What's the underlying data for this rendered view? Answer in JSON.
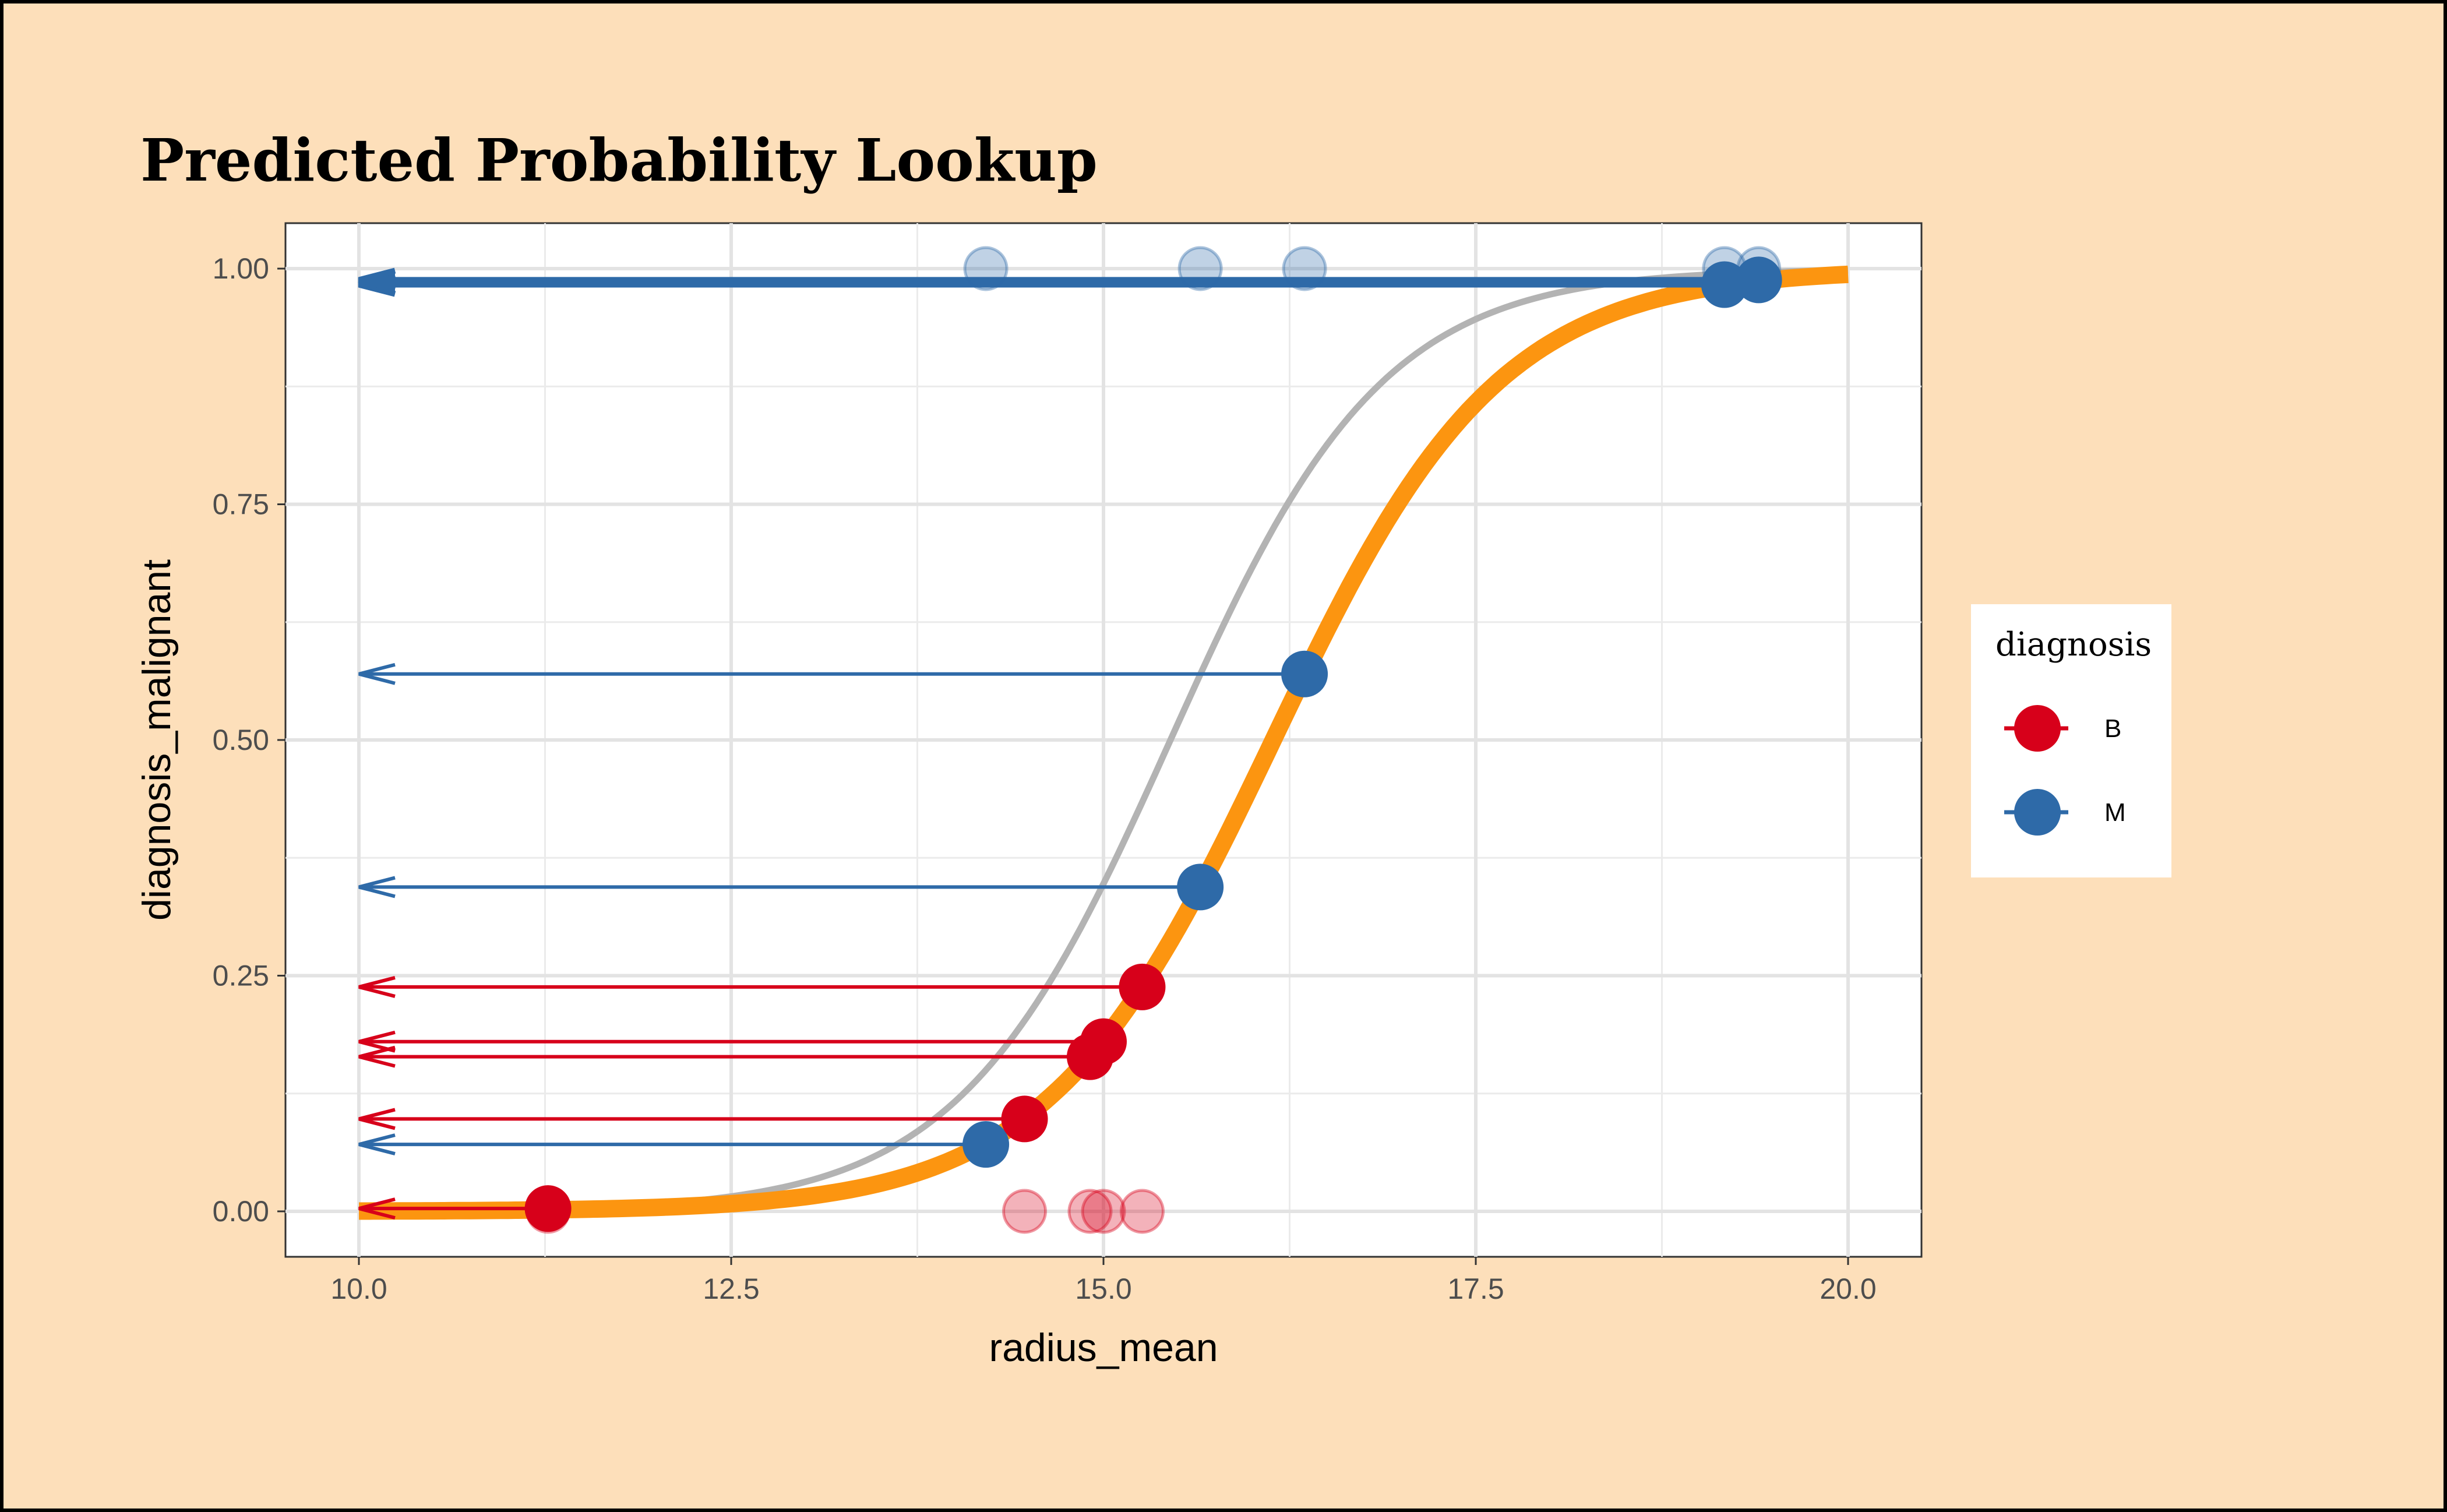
{
  "chart_data": {
    "type": "scatter",
    "title": "Predicted Probability Lookup",
    "xlabel": "radius_mean",
    "ylabel": "diagnosis_malignant",
    "xlim": [
      10,
      20
    ],
    "ylim": [
      0,
      1
    ],
    "xticks": [
      "10.0",
      "12.5",
      "15.0",
      "17.5",
      "20.0"
    ],
    "xtick_values": [
      10,
      12.5,
      15,
      17.5,
      20
    ],
    "yticks": [
      "0.00",
      "0.25",
      "0.50",
      "0.75",
      "1.00"
    ],
    "ytick_values": [
      0,
      0.25,
      0.5,
      0.75,
      1
    ],
    "grid": true,
    "legend": {
      "title": "diagnosis",
      "position": "right",
      "entries": [
        {
          "label": "B",
          "color": "#D7001A"
        },
        {
          "label": "M",
          "color": "#2E6AA8"
        }
      ]
    },
    "curves": [
      {
        "name": "fitted",
        "color": "#FC9510",
        "slope": 1.32,
        "midpoint": 16.14
      },
      {
        "name": "reference",
        "color": "#B3B3B3",
        "slope": 1.4,
        "midpoint": 15.45
      }
    ],
    "points": [
      {
        "x": 11.27,
        "p": 0.003,
        "observed": 0,
        "diagnosis": "B"
      },
      {
        "x": 14.21,
        "p": 0.071,
        "observed": 1,
        "diagnosis": "M"
      },
      {
        "x": 14.47,
        "p": 0.098,
        "observed": 0,
        "diagnosis": "B"
      },
      {
        "x": 14.91,
        "p": 0.164,
        "observed": 0,
        "diagnosis": "B"
      },
      {
        "x": 15.0,
        "p": 0.18,
        "observed": 0,
        "diagnosis": "B"
      },
      {
        "x": 15.26,
        "p": 0.238,
        "observed": 0,
        "diagnosis": "B"
      },
      {
        "x": 15.65,
        "p": 0.344,
        "observed": 1,
        "diagnosis": "M"
      },
      {
        "x": 16.35,
        "p": 0.57,
        "observed": 1,
        "diagnosis": "M"
      },
      {
        "x": 19.17,
        "p": 0.983,
        "observed": 1,
        "diagnosis": "M"
      },
      {
        "x": 19.4,
        "p": 0.988,
        "observed": 1,
        "diagnosis": "M"
      }
    ]
  },
  "colors": {
    "background": "#FDDFBA",
    "B": "#D7001A",
    "M": "#2E6AA8"
  }
}
